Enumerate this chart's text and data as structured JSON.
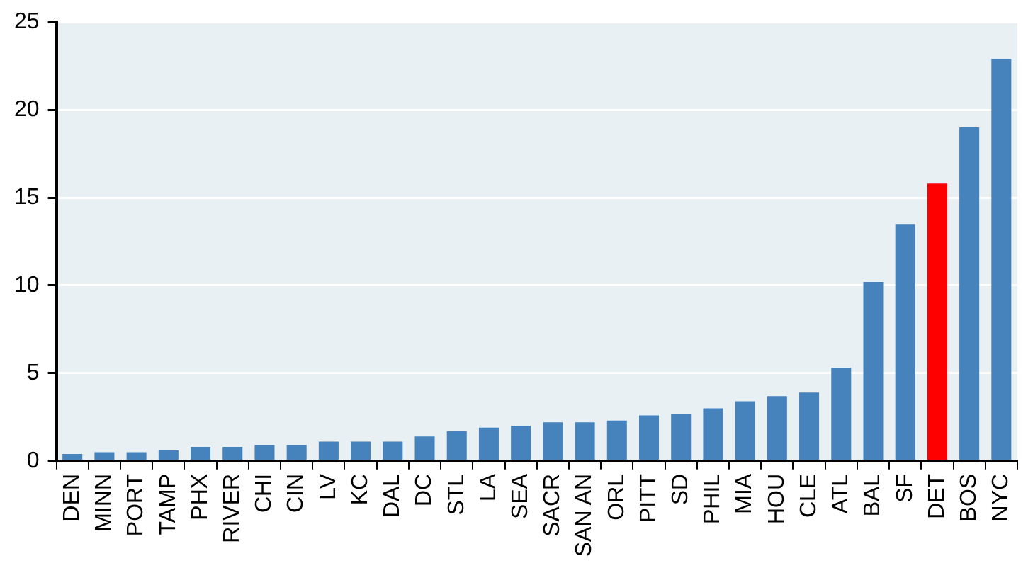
{
  "chart_data": {
    "type": "bar",
    "categories": [
      "DEN",
      "MINN",
      "PORT",
      "TAMP",
      "PHX",
      "RIVER",
      "CHI",
      "CIN",
      "LV",
      "KC",
      "DAL",
      "DC",
      "STL",
      "LA",
      "SEA",
      "SACR",
      "SAN AN",
      "ORL",
      "PITT",
      "SD",
      "PHIL",
      "MIA",
      "HOU",
      "CLE",
      "ATL",
      "BAL",
      "SF",
      "DET",
      "BOS",
      "NYC"
    ],
    "values": [
      0.4,
      0.5,
      0.5,
      0.6,
      0.8,
      0.8,
      0.9,
      0.9,
      1.1,
      1.1,
      1.1,
      1.4,
      1.7,
      1.9,
      2.0,
      2.2,
      2.2,
      2.3,
      2.6,
      2.7,
      3.0,
      3.4,
      3.7,
      3.9,
      5.3,
      10.2,
      13.5,
      15.8,
      19.0,
      22.9
    ],
    "colors": [
      "#4682bb",
      "#4682bb",
      "#4682bb",
      "#4682bb",
      "#4682bb",
      "#4682bb",
      "#4682bb",
      "#4682bb",
      "#4682bb",
      "#4682bb",
      "#4682bb",
      "#4682bb",
      "#4682bb",
      "#4682bb",
      "#4682bb",
      "#4682bb",
      "#4682bb",
      "#4682bb",
      "#4682bb",
      "#4682bb",
      "#4682bb",
      "#4682bb",
      "#4682bb",
      "#4682bb",
      "#4682bb",
      "#4682bb",
      "#4682bb",
      "#ff0000",
      "#4682bb",
      "#4682bb"
    ],
    "ylim": [
      0,
      25
    ],
    "yticks": [
      0,
      5,
      10,
      15,
      20,
      25
    ],
    "grid": "y",
    "legend": false
  }
}
